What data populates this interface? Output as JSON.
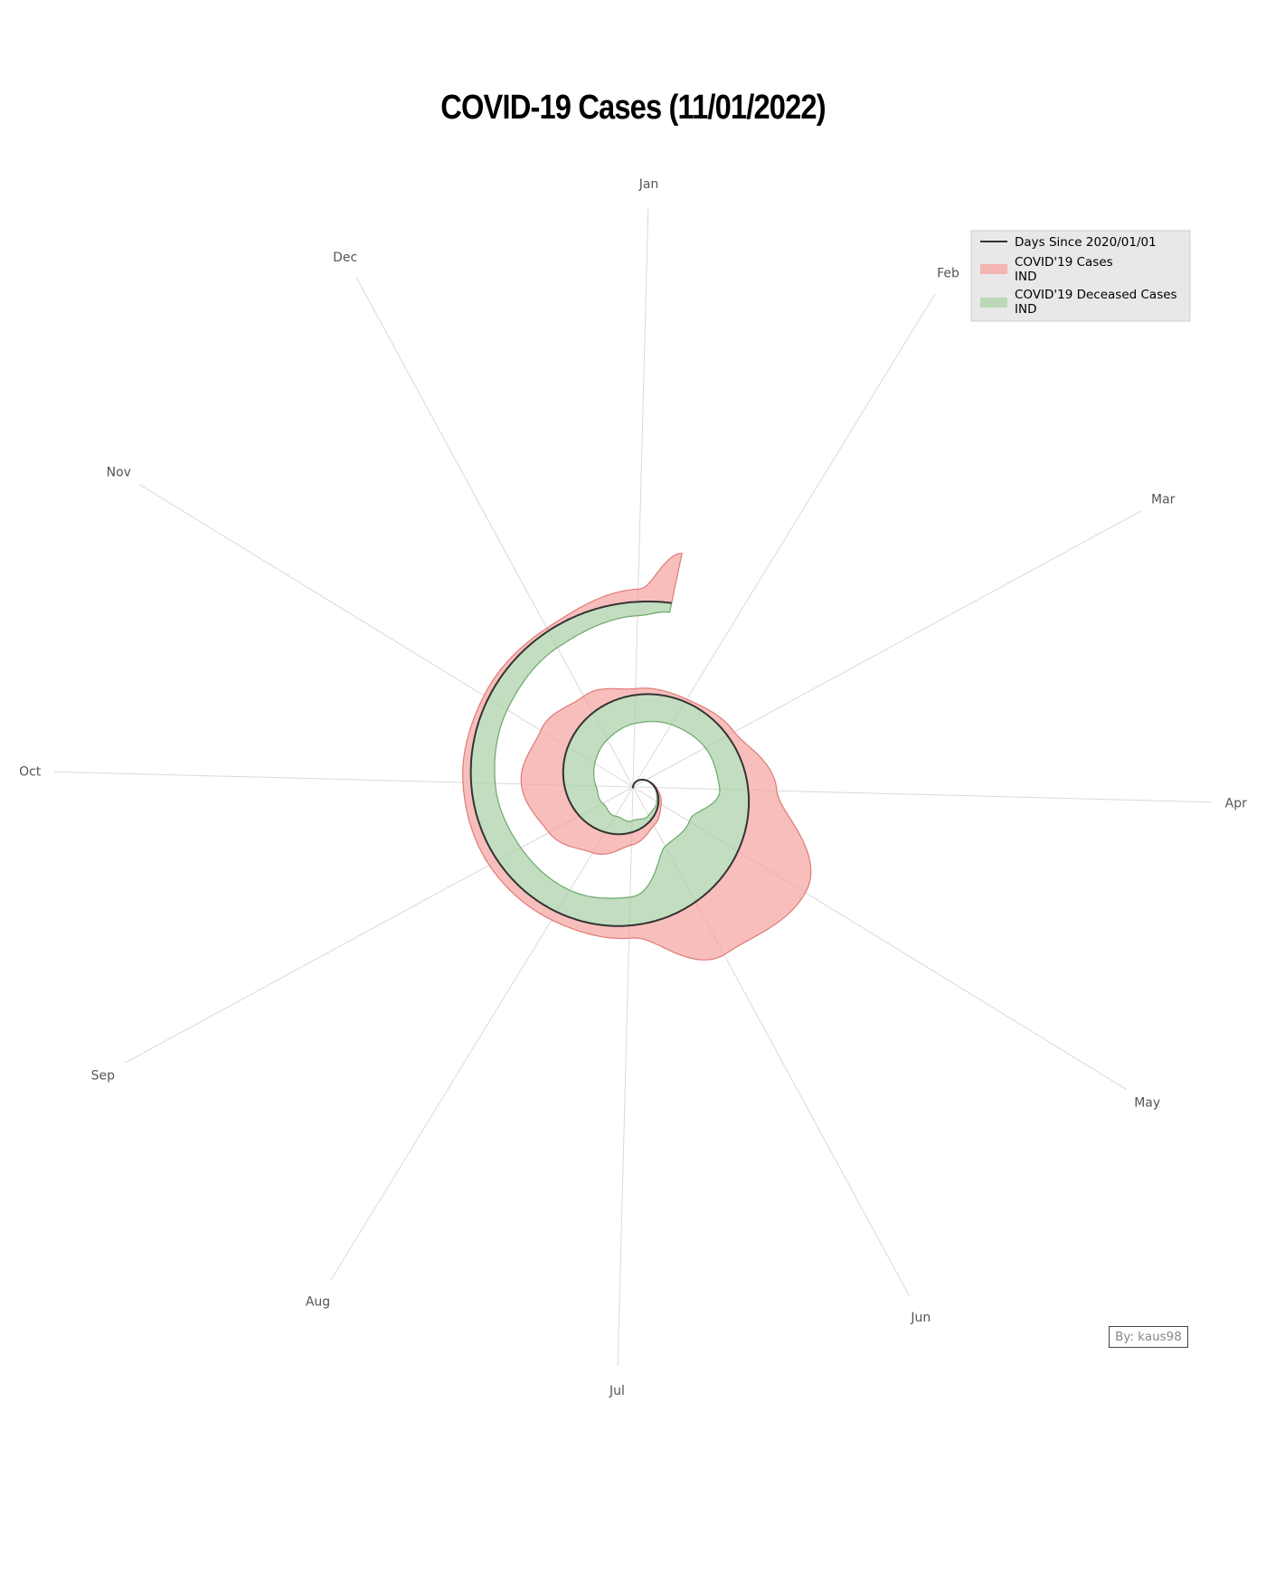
{
  "chart_data": {
    "type": "spiral",
    "title": "COVID-19 Cases (11/01/2022)",
    "angular_ticks": [
      "Jan",
      "Feb",
      "Mar",
      "Apr",
      "May",
      "Jun",
      "Jul",
      "Aug",
      "Sep",
      "Oct",
      "Nov",
      "Dec"
    ],
    "series": [
      {
        "name": "Days Since 2020/01/01",
        "kind": "line",
        "color": "#333333"
      },
      {
        "name": "COVID'19 Cases\nIND",
        "kind": "area",
        "color": "#f4a3a0"
      },
      {
        "name": "COVID'19 Deceased Cases\nIND",
        "kind": "area",
        "color": "#a9cfa5"
      }
    ],
    "cases_relative": {
      "dates": [
        "2020-03-01",
        "2020-04-01",
        "2020-05-01",
        "2020-06-01",
        "2020-07-01",
        "2020-08-01",
        "2020-09-01",
        "2020-10-01",
        "2020-11-01",
        "2020-12-01",
        "2021-01-01",
        "2021-02-01",
        "2021-03-01",
        "2021-04-01",
        "2021-05-01",
        "2021-06-01",
        "2021-07-01",
        "2021-08-01",
        "2021-09-01",
        "2021-10-01",
        "2021-11-01",
        "2021-12-01",
        "2022-01-01",
        "2022-01-11"
      ],
      "values": [
        0.0,
        0.02,
        0.05,
        0.1,
        0.2,
        0.38,
        0.55,
        0.68,
        0.5,
        0.3,
        0.1,
        0.05,
        0.12,
        0.45,
        1.25,
        0.95,
        0.2,
        0.15,
        0.15,
        0.13,
        0.08,
        0.05,
        0.2,
        0.8
      ]
    },
    "deceased_relative": {
      "dates": [
        "2020-03-01",
        "2020-04-01",
        "2020-05-01",
        "2020-06-01",
        "2020-07-01",
        "2020-08-01",
        "2020-09-01",
        "2020-10-01",
        "2020-11-01",
        "2020-12-01",
        "2021-01-01",
        "2021-02-01",
        "2021-03-01",
        "2021-04-01",
        "2021-05-01",
        "2021-06-01",
        "2021-07-01",
        "2021-08-01",
        "2021-09-01",
        "2021-10-01",
        "2021-11-01",
        "2021-12-01",
        "2022-01-01",
        "2022-01-11"
      ],
      "values": [
        0.0,
        0.01,
        0.03,
        0.08,
        0.18,
        0.3,
        0.42,
        0.5,
        0.5,
        0.48,
        0.45,
        0.42,
        0.4,
        0.45,
        0.9,
        1.0,
        0.45,
        0.4,
        0.42,
        0.38,
        0.35,
        0.3,
        0.22,
        0.15
      ]
    }
  },
  "legend": {
    "line_label": "Days Since 2020/01/01",
    "cases_label_1": "COVID'19 Cases",
    "cases_label_2": "IND",
    "deceased_label_1": "COVID'19 Deceased Cases",
    "deceased_label_2": "IND"
  },
  "credit": "By: kaus98",
  "colors": {
    "cases_fill": "#f4a3a0",
    "cases_edge": "#e07a75",
    "deceased_fill": "#a9cfa5",
    "deceased_edge": "#6aa86a",
    "spiral": "#333333",
    "legend_bg": "#e8e8e8"
  }
}
